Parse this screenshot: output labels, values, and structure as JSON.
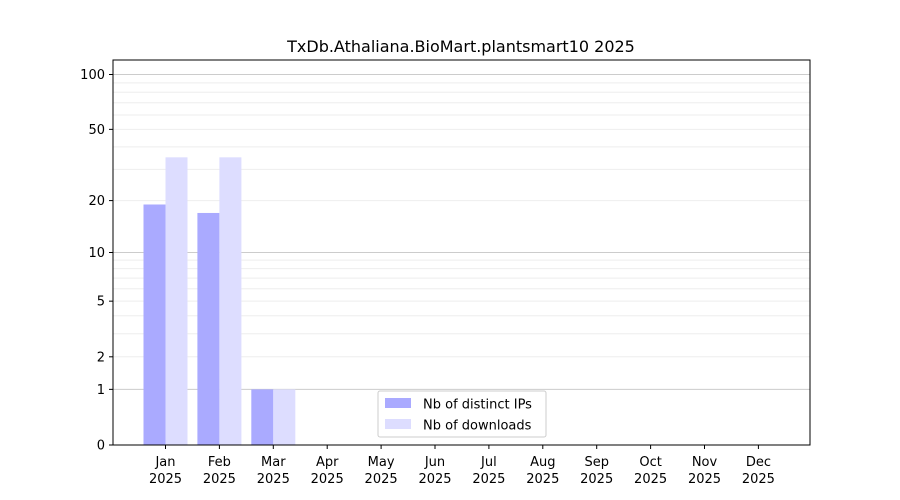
{
  "chart_data": {
    "type": "bar",
    "title": "TxDb.Athaliana.BioMart.plantsmart10 2025",
    "xlabel": "",
    "ylabel": "",
    "y_scale": "log(1 + y)",
    "ylim": [
      0,
      120
    ],
    "y_ticks": [
      0,
      1,
      2,
      5,
      10,
      20,
      50,
      100
    ],
    "y_tick_labels": [
      "0",
      "1",
      "2",
      "5",
      "10",
      "20",
      "50",
      "100"
    ],
    "categories": [
      "Jan",
      "Feb",
      "Mar",
      "Apr",
      "May",
      "Jun",
      "Jul",
      "Aug",
      "Sep",
      "Oct",
      "Nov",
      "Dec"
    ],
    "category_sublabel": "2025",
    "series": [
      {
        "name": "Nb of distinct IPs",
        "color": "#aaaaff",
        "values": [
          19,
          17,
          1,
          0,
          0,
          0,
          0,
          0,
          0,
          0,
          0,
          0
        ]
      },
      {
        "name": "Nb of downloads",
        "color": "#ddddff",
        "values": [
          35,
          35,
          1,
          0,
          0,
          0,
          0,
          0,
          0,
          0,
          0,
          0
        ]
      }
    ],
    "legend_position": "bottom-center",
    "grid": true,
    "grid_major_color": "#cccccc",
    "grid_minor_color": "#eeeeee"
  }
}
